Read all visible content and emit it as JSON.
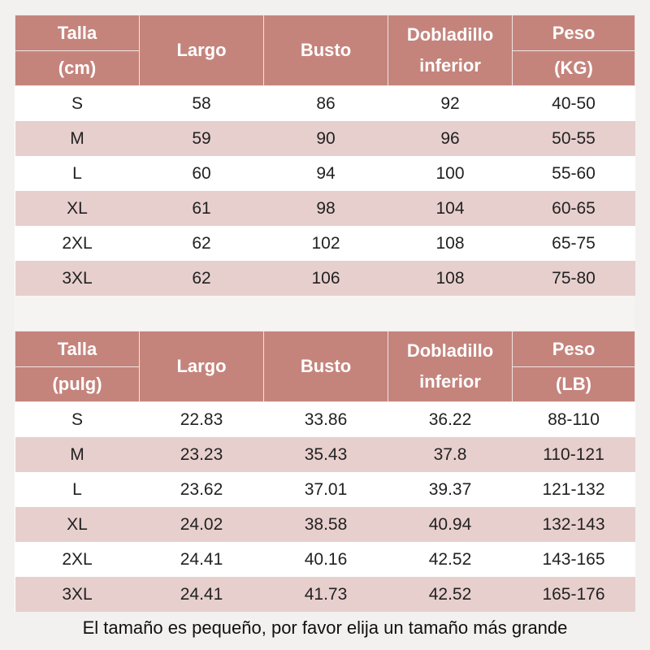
{
  "table_cm": {
    "headers": {
      "size": [
        "Talla",
        "(cm)"
      ],
      "length": "Largo",
      "bust": "Busto",
      "hem": [
        "Dobladillo",
        "inferior"
      ],
      "weight": [
        "Peso",
        "(KG)"
      ]
    },
    "rows": [
      [
        "S",
        "58",
        "86",
        "92",
        "40-50"
      ],
      [
        "M",
        "59",
        "90",
        "96",
        "50-55"
      ],
      [
        "L",
        "60",
        "94",
        "100",
        "55-60"
      ],
      [
        "XL",
        "61",
        "98",
        "104",
        "60-65"
      ],
      [
        "2XL",
        "62",
        "102",
        "108",
        "65-75"
      ],
      [
        "3XL",
        "62",
        "106",
        "108",
        "75-80"
      ]
    ]
  },
  "table_in": {
    "headers": {
      "size": [
        "Talla",
        "(pulg)"
      ],
      "length": "Largo",
      "bust": "Busto",
      "hem": [
        "Dobladillo",
        "inferior"
      ],
      "weight": [
        "Peso",
        "(LB)"
      ]
    },
    "rows": [
      [
        "S",
        "22.83",
        "33.86",
        "36.22",
        "88-110"
      ],
      [
        "M",
        "23.23",
        "35.43",
        "37.8",
        "110-121"
      ],
      [
        "L",
        "23.62",
        "37.01",
        "39.37",
        "121-132"
      ],
      [
        "XL",
        "24.02",
        "38.58",
        "40.94",
        "132-143"
      ],
      [
        "2XL",
        "24.41",
        "40.16",
        "42.52",
        "143-165"
      ],
      [
        "3XL",
        "24.41",
        "41.73",
        "42.52",
        "165-176"
      ]
    ]
  },
  "footer_note": "El tamaño es pequeño, por favor elija un tamaño más grande",
  "colors": {
    "header_bg": "#c4847c",
    "row_alt_bg": "#e7cfcd",
    "row_bg": "#ffffff"
  }
}
